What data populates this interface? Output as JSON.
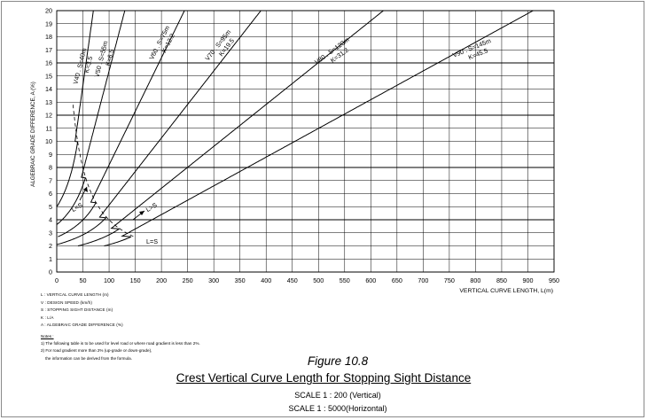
{
  "chart_data": {
    "type": "line",
    "xlabel": "VERTICAL CURVE LENGTH, L(m)",
    "ylabel": "ALGEBRAIC GRADE DIFFERENCE, A (%)",
    "xlim": [
      0,
      950
    ],
    "ylim": [
      0,
      20
    ],
    "x_ticks": [
      0,
      50,
      100,
      150,
      200,
      250,
      300,
      350,
      400,
      450,
      500,
      550,
      600,
      650,
      700,
      750,
      800,
      850,
      900,
      950
    ],
    "y_ticks": [
      0,
      1,
      2,
      3,
      4,
      5,
      6,
      7,
      8,
      9,
      10,
      11,
      12,
      13,
      14,
      15,
      16,
      17,
      18,
      19,
      20
    ],
    "grid": true,
    "series": [
      {
        "name": "V40 . S=40m",
        "k_label": "K=3.5",
        "K": 3.5,
        "S": 40
      },
      {
        "name": "V50 . S=55m",
        "k_label": "K=6.5",
        "K": 6.5,
        "S": 55
      },
      {
        "name": "V60 . S=75m",
        "k_label": "K=12.2",
        "K": 12.2,
        "S": 75
      },
      {
        "name": "V70 . S=95m",
        "k_label": "K=19.5",
        "K": 19.5,
        "S": 95
      },
      {
        "name": "V80 . S=120m",
        "k_label": "K=31.2",
        "K": 31.2,
        "S": 120
      },
      {
        "name": "V90 . S=145m",
        "k_label": "K=45.5",
        "K": 45.5,
        "S": 145
      }
    ],
    "annotations": [
      "L<S",
      "L>S",
      "L=S"
    ],
    "boundary": {
      "name": "L=S"
    }
  },
  "legend": [
    "L : VERTICAL CURVE LENGTH (m)",
    "V : DESIGN SPEED (km/h)",
    "S : STOPPING SIGHT DISTANCE (m)",
    "K : L/A",
    "A : ALGEBRAIC GRADE DIFFERENCE (%)"
  ],
  "notes": {
    "title": "Notes :",
    "items": [
      "1) The following table is to be used for level road or where road gradient is less than 2%.",
      "2) For road gradient more than 2% (up-grade or down-grade),",
      "    the information can be derived from the formula."
    ]
  },
  "figure": {
    "number": "Figure 10.8",
    "title": "Crest Vertical Curve Length for Stopping Sight Distance",
    "scale_vertical": "SCALE  1 : 200 (Vertical)",
    "scale_horizontal": "SCALE  1 : 5000(Horizontal)"
  }
}
